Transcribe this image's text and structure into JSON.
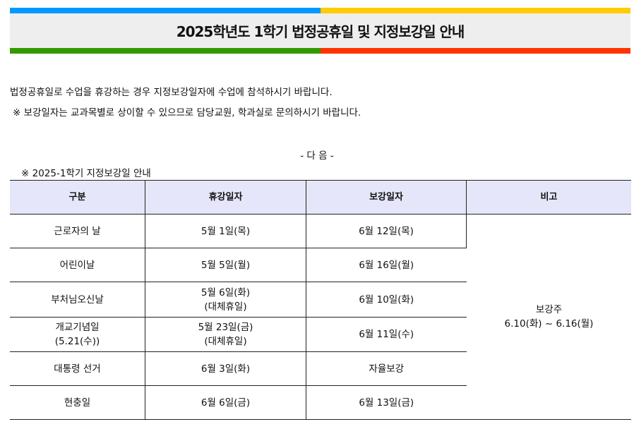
{
  "colors": {
    "top_left": "#0099ff",
    "top_right": "#ffcc00",
    "bottom_left": "#339900",
    "bottom_right": "#ff3300",
    "title_bg": "#eeeeee",
    "header_bg": "#e6e6fa"
  },
  "title": "2025학년도 1학기 법정공휴일 및 지정보강일 안내",
  "intro": "법정공휴일로 수업을 휴강하는 경우 지정보강일자에 수업에 참석하시기 바랍니다.",
  "note": "※ 보강일자는 교과목별로 상이할 수 있으므로 담당교원, 학과실로 문의하시기 바랍니다.",
  "next": "- 다 음 -",
  "table_caption": "※ 2025-1학기 지정보강일 안내",
  "headers": [
    "구분",
    "휴강일자",
    "보강일자",
    "비고"
  ],
  "rows": [
    {
      "name": "근로자의 날",
      "off": "5월 1일(목)",
      "makeup": "6월 12일(목)"
    },
    {
      "name": "어린이날",
      "off": "5월 5일(월)",
      "makeup": "6월 16일(월)"
    },
    {
      "name": "부처님오신날",
      "off": "5월 6일(화)",
      "off2": "(대체휴일)",
      "makeup": "6월 10일(화)"
    },
    {
      "name": "개교기념일",
      "name2": "(5.21(수))",
      "off": "5월 23일(금)",
      "off2": "(대체휴일)",
      "makeup": "6월 11일(수)"
    },
    {
      "name": "대통령 선거",
      "off": "6월 3일(화)",
      "makeup": "자율보강"
    },
    {
      "name": "현충일",
      "off": "6월 6일(금)",
      "makeup": "6월 13일(금)"
    }
  ],
  "remark": {
    "line1": "보강주",
    "line2": "6.10(화) ~ 6.16(월)"
  }
}
